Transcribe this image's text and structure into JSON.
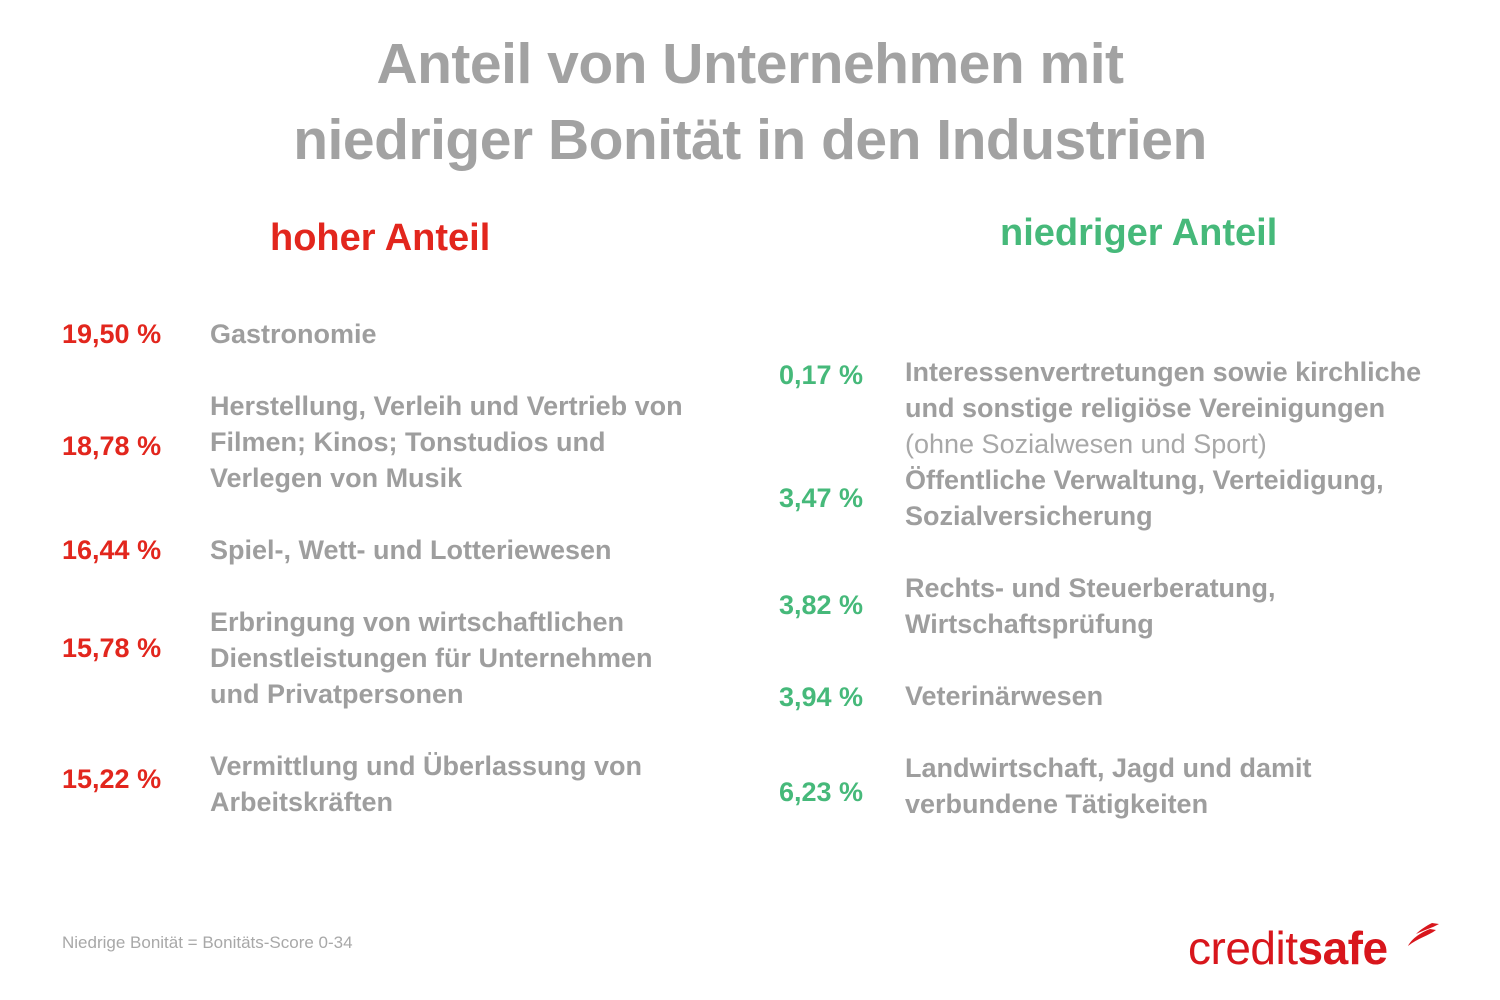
{
  "title": {
    "line1": "Anteil von Unternehmen mit",
    "line2": "niedriger Bonität in den Industrien"
  },
  "high": {
    "heading": "hoher Anteil",
    "items": [
      {
        "pct": "19,50 %",
        "label": "Gastronomie"
      },
      {
        "pct": "18,78 %",
        "label": "Herstellung, Verleih und Vertrieb von\nFilmen; Kinos; Tonstudios und\nVerlegen von Musik"
      },
      {
        "pct": "16,44 %",
        "label": "Spiel-, Wett- und Lotteriewesen"
      },
      {
        "pct": "15,78 %",
        "label": "Erbringung von wirtschaftlichen\nDienstleistungen für Unternehmen\nund Privatpersonen"
      },
      {
        "pct": "15,22 %",
        "label": "Vermittlung und Überlassung von\nArbeitskräften"
      }
    ]
  },
  "low": {
    "heading": "niedriger Anteil",
    "items": [
      {
        "pct": "0,17 %",
        "label": "Interessenvertretungen sowie kirchliche\nund sonstige religiöse Vereinigungen",
        "sub": "(ohne Sozialwesen und Sport)"
      },
      {
        "pct": "3,47 %",
        "label": "Öffentliche Verwaltung, Verteidigung,\nSozialversicherung"
      },
      {
        "pct": "3,82 %",
        "label": "Rechts- und Steuerberatung,\nWirtschaftsprüfung"
      },
      {
        "pct": "3,94 %",
        "label": "Veterinärwesen"
      },
      {
        "pct": "6,23 %",
        "label": "Landwirtschaft, Jagd und damit\nverbundene Tätigkeiten"
      }
    ]
  },
  "footnote": "Niedrige Bonität = Bonitäts-Score 0-34",
  "logo": {
    "part1": "credit",
    "part2": "safe",
    "icon": "flame-swoosh-icon"
  },
  "colors": {
    "high": "#e2261d",
    "low": "#46b97a",
    "text": "#9e9e9e",
    "title": "#a2a2a2",
    "brand": "#d8161c"
  }
}
